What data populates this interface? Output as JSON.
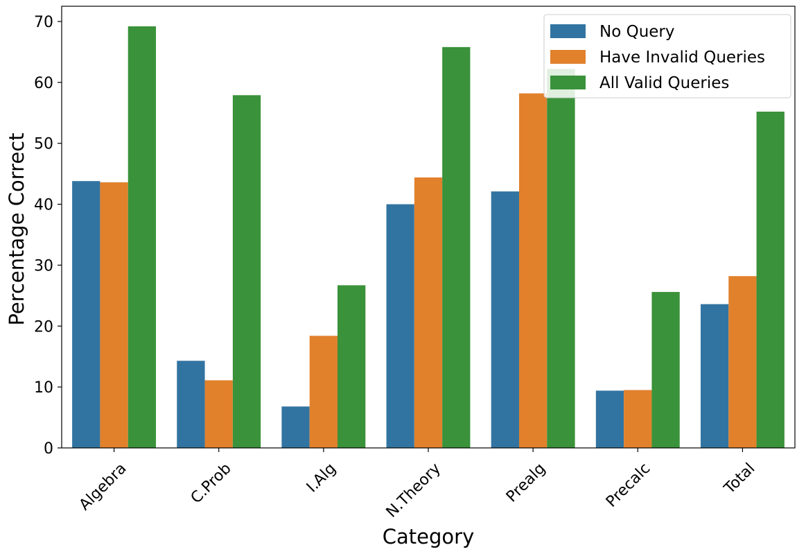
{
  "chart_data": {
    "type": "bar",
    "title": "",
    "xlabel": "Category",
    "ylabel": "Percentage Correct",
    "categories": [
      "Algebra",
      "C.Prob",
      "I.Alg",
      "N.Theory",
      "Prealg",
      "Precalc",
      "Total"
    ],
    "series": [
      {
        "name": "No Query",
        "color": "#3274a1",
        "values": [
          43.8,
          14.3,
          6.8,
          40.0,
          42.1,
          9.4,
          23.6
        ]
      },
      {
        "name": "Have Invalid Queries",
        "color": "#e1812c",
        "values": [
          43.6,
          11.1,
          18.4,
          44.4,
          58.2,
          9.5,
          28.2
        ]
      },
      {
        "name": "All Valid Queries",
        "color": "#3a923a",
        "values": [
          69.2,
          57.9,
          26.7,
          65.8,
          62.2,
          25.6,
          55.2
        ]
      }
    ],
    "ylim": [
      0,
      72.5
    ],
    "yticks": [
      0,
      10,
      20,
      30,
      40,
      50,
      60,
      70
    ],
    "grid": false,
    "legend_position": "top-right"
  }
}
